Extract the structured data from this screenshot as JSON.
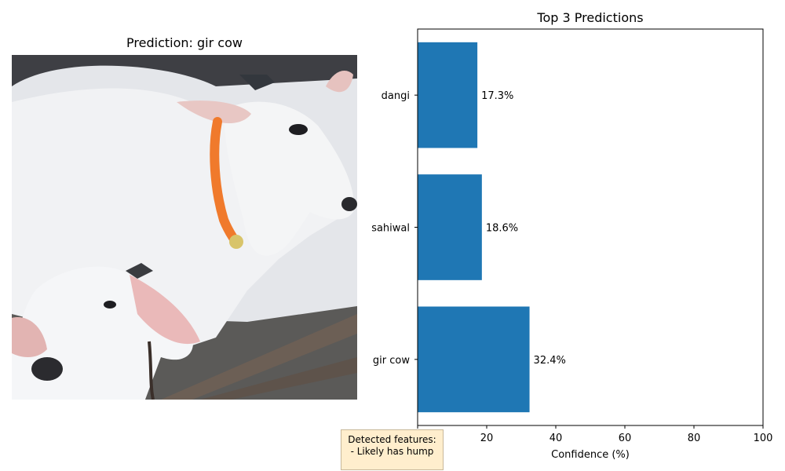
{
  "left_panel": {
    "title": "Prediction: gir cow"
  },
  "features_box": {
    "line1": "Detected features:",
    "line2": "- Likely has hump"
  },
  "chart_data": {
    "type": "bar",
    "orientation": "horizontal",
    "title": "Top 3 Predictions",
    "xlabel": "Confidence (%)",
    "ylabel": "",
    "xlim": [
      0,
      100
    ],
    "xticks": [
      0,
      20,
      40,
      60,
      80,
      100
    ],
    "categories": [
      "gir cow",
      "sahiwal",
      "dangi"
    ],
    "values": [
      32.4,
      18.6,
      17.3
    ],
    "value_labels": [
      "32.4%",
      "18.6%",
      "17.3%"
    ],
    "bar_color": "#1f77b4",
    "grid": false
  }
}
